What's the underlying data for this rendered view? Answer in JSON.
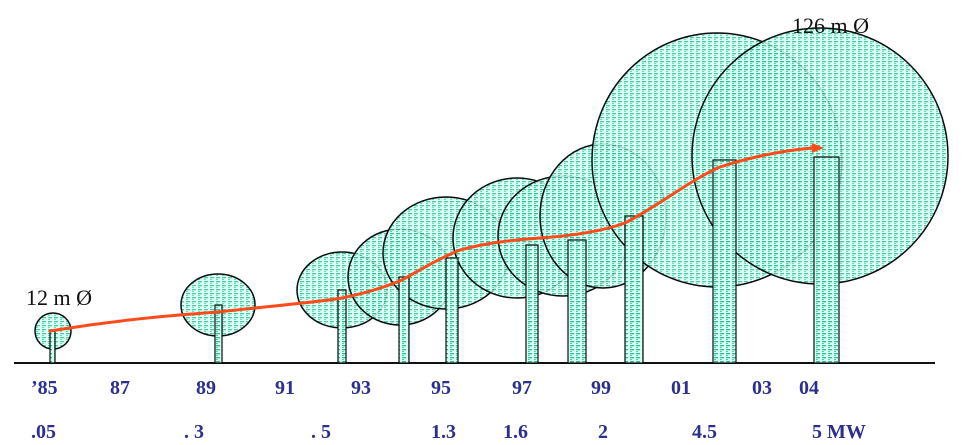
{
  "colors": {
    "fill": "#27c29a",
    "stroke": "#0b0b0b",
    "curve": "#ff4a1a",
    "axis": "#111111",
    "year_text": "#2b2f8f",
    "mw_text": "#2b2f8f"
  },
  "labels": {
    "small_diameter": "12 m Ø",
    "large_diameter": "126 m Ø"
  },
  "timeline": {
    "years": [
      "’85",
      "87",
      "89",
      "91",
      "93",
      "95",
      "97",
      "99",
      "01",
      "03",
      "04"
    ],
    "power_labels": [
      ".05",
      ". 3",
      ". 5",
      "1.3",
      "1.6",
      "2",
      "4.5",
      "5 MW"
    ]
  }
}
